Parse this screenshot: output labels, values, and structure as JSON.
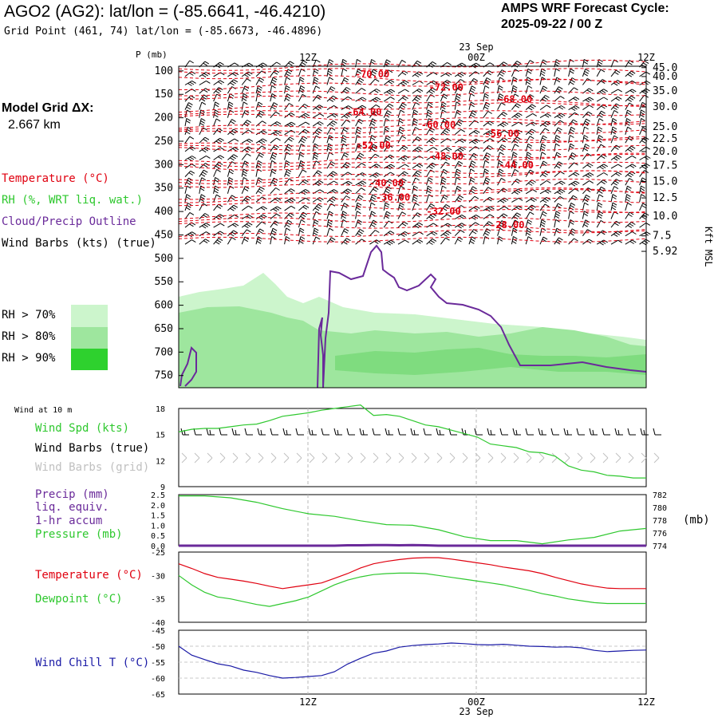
{
  "header": {
    "title": "AGO2 (AG2):  lat/lon = (-85.6641, -46.4210)",
    "subtitle": "Grid Point (461, 74) lat/lon = (-85.6673, -46.4896)",
    "cycle_line1": "AMPS WRF Forecast Cycle:",
    "cycle_line2": "2025-09-22 / 00  Z"
  },
  "model_grid": {
    "label": "Model Grid ΔX:",
    "value": "2.667 km"
  },
  "legend_main": [
    {
      "text": "Temperature (°C)",
      "color": "#e0000f"
    },
    {
      "text": "RH (%, WRT liq. wat.)",
      "color": "#2ec82e"
    },
    {
      "text": "Cloud/Precip Outline",
      "color": "#6a2a9a"
    },
    {
      "text": "Wind Barbs (kts) (true)",
      "color": "#000000"
    }
  ],
  "rh_legend": [
    {
      "text": "RH > 70%",
      "color": "#ccf5cc"
    },
    {
      "text": "RH > 80%",
      "color": "#9ee69e"
    },
    {
      "text": "RH > 90%",
      "color": "#2ed12e"
    }
  ],
  "panel_labels": {
    "wind10": "Wind at 10 m",
    "wspd": "Wind Spd (kts)",
    "wbarb_true": "Wind Barbs (true)",
    "wbarb_grid": "Wind Barbs (grid)",
    "precip1": "Precip (mm)",
    "precip2": "liq. equiv.",
    "precip3": "1-hr accum",
    "pressure": "Pressure (mb)",
    "mb_unit": "(mb)",
    "temp": "Temperature (°C)",
    "dew": "Dewpoint (°C)",
    "chill": "Wind Chill T (°C)"
  },
  "time_axis": {
    "top_labels": [
      "12Z",
      "00Z",
      "12Z"
    ],
    "date_label": "23 Sep",
    "bottom_labels": [
      "12Z",
      "00Z",
      "12Z"
    ]
  },
  "chart_data": [
    {
      "type": "heatmap",
      "title": "",
      "ylabel": "P (mb)",
      "y2label": "Kft MSL",
      "x_hours": [
        0,
        36
      ],
      "pressure_ticks": [
        100,
        150,
        200,
        250,
        300,
        350,
        400,
        450,
        500,
        550,
        600,
        650,
        700,
        750
      ],
      "height_ticks_kft": [
        "45.0",
        "40.0",
        "35.0",
        "30.0",
        "25.0",
        "22.5",
        "20.0",
        "17.5",
        "15.0",
        "12.5",
        "10.0",
        "7.5",
        "5.92"
      ],
      "height_tick_pressures": [
        93,
        112,
        143,
        177,
        219,
        245,
        272,
        302,
        336,
        371,
        410,
        452,
        485
      ],
      "temperature_contour_labels": [
        {
          "value": "-70.00",
          "hour": 14.9,
          "p": 107
        },
        {
          "value": "-72.00",
          "hour": 20.6,
          "p": 135
        },
        {
          "value": "-68.00",
          "hour": 25.9,
          "p": 161
        },
        {
          "value": "-64.00",
          "hour": 14.3,
          "p": 188
        },
        {
          "value": "-60.00",
          "hour": 20.0,
          "p": 215
        },
        {
          "value": "-56.00",
          "hour": 24.9,
          "p": 234
        },
        {
          "value": "-52.00",
          "hour": 15.0,
          "p": 259
        },
        {
          "value": "-48.00",
          "hour": 20.6,
          "p": 282
        },
        {
          "value": "-44.00",
          "hour": 26.0,
          "p": 301
        },
        {
          "value": "-40.00",
          "hour": 16.0,
          "p": 339
        },
        {
          "value": "-36.00",
          "hour": 16.5,
          "p": 370
        },
        {
          "value": "-32.00",
          "hour": 20.4,
          "p": 400
        },
        {
          "value": "-28.00",
          "hour": 25.3,
          "p": 429
        }
      ]
    },
    {
      "type": "line",
      "title": "",
      "ylim": [
        9,
        18
      ],
      "yticks": [
        9,
        12,
        15,
        18
      ],
      "series": [
        {
          "name": "Wind Spd (kts)",
          "color": "#2ec82e",
          "x": [
            0,
            1,
            2,
            3,
            4,
            5,
            6,
            7,
            8,
            9,
            10,
            11,
            12,
            13,
            14,
            15,
            16,
            17,
            18,
            19,
            20,
            21,
            22,
            23,
            24,
            25,
            26,
            27,
            28,
            29,
            30,
            31,
            32,
            33,
            34,
            35,
            36
          ],
          "values": [
            15.3,
            15.6,
            15.7,
            15.7,
            15.9,
            16.1,
            16.2,
            16.6,
            17.1,
            17.3,
            17.5,
            17.8,
            18.0,
            18.2,
            18.4,
            17.2,
            17.3,
            17.1,
            16.6,
            16.1,
            15.9,
            15.5,
            15.1,
            14.7,
            13.9,
            13.7,
            13.5,
            13.0,
            12.9,
            12.5,
            11.4,
            10.9,
            10.7,
            10.3,
            10.2,
            10.0,
            10.0
          ]
        }
      ]
    },
    {
      "type": "line",
      "title": "",
      "ylim": [
        0,
        2.5
      ],
      "yticks": [
        "0.0",
        "0.5",
        "1.0",
        "1.5",
        "2.0",
        "2.5"
      ],
      "y2lim": [
        774,
        782
      ],
      "y2ticks": [
        "774",
        "776",
        "778",
        "780",
        "782"
      ],
      "series": [
        {
          "name": "Pressure (mb)",
          "color": "#2ec82e",
          "x": [
            0,
            2,
            4,
            6,
            8,
            10,
            12,
            14,
            16,
            18,
            20,
            22,
            24,
            26,
            28,
            30,
            32,
            34,
            36
          ],
          "values": [
            781.8,
            781.8,
            781.5,
            780.8,
            779.8,
            779.0,
            778.6,
            777.9,
            777.3,
            777.2,
            776.5,
            775.4,
            774.8,
            774.8,
            774.3,
            774.9,
            775.3,
            776.3,
            776.7
          ]
        },
        {
          "name": "Precip (mm)",
          "color": "#6a2a9a",
          "x": [
            0,
            12,
            13,
            14,
            15,
            16,
            17,
            18,
            19,
            20,
            36
          ],
          "values": [
            0,
            0,
            0.02,
            0.02,
            0.03,
            0.03,
            0.02,
            0.03,
            0.02,
            0,
            0
          ]
        }
      ]
    },
    {
      "type": "line",
      "title": "",
      "ylim": [
        -40,
        -25
      ],
      "yticks": [
        "-25",
        "-30",
        "-35",
        "-40"
      ],
      "series": [
        {
          "name": "Temperature (°C)",
          "color": "#e0000f",
          "x": [
            0,
            1,
            2,
            3,
            4,
            5,
            6,
            7,
            8,
            9,
            10,
            11,
            12,
            13,
            14,
            15,
            16,
            17,
            18,
            19,
            20,
            21,
            22,
            23,
            24,
            25,
            26,
            27,
            28,
            29,
            30,
            31,
            32,
            33,
            34,
            35,
            36
          ],
          "values": [
            -27.5,
            -28.5,
            -29.6,
            -30.4,
            -30.8,
            -31.2,
            -31.7,
            -32.3,
            -32.8,
            -32.4,
            -32.0,
            -31.6,
            -30.6,
            -29.6,
            -28.4,
            -27.5,
            -27.0,
            -26.6,
            -26.3,
            -26.2,
            -26.2,
            -26.5,
            -26.9,
            -27.3,
            -27.7,
            -28.2,
            -28.6,
            -29.0,
            -29.6,
            -30.4,
            -31.1,
            -31.8,
            -32.3,
            -32.7,
            -32.8,
            -32.8,
            -32.8
          ]
        },
        {
          "name": "Dewpoint (°C)",
          "color": "#2ec82e",
          "x": [
            0,
            1,
            2,
            3,
            4,
            5,
            6,
            7,
            8,
            9,
            10,
            11,
            12,
            13,
            14,
            15,
            16,
            17,
            18,
            19,
            20,
            21,
            22,
            23,
            24,
            25,
            26,
            27,
            28,
            29,
            30,
            31,
            32,
            33,
            34,
            35,
            36
          ],
          "values": [
            -30.0,
            -32.0,
            -33.6,
            -34.6,
            -35.0,
            -35.6,
            -36.2,
            -36.6,
            -36.0,
            -35.4,
            -34.6,
            -33.3,
            -32.0,
            -31.0,
            -30.3,
            -29.8,
            -29.6,
            -29.5,
            -29.5,
            -29.6,
            -30.0,
            -30.4,
            -30.8,
            -31.2,
            -31.6,
            -32.0,
            -32.6,
            -33.2,
            -33.9,
            -34.4,
            -35.0,
            -35.4,
            -35.8,
            -36.0,
            -36.0,
            -36.0,
            -36.0
          ]
        }
      ]
    },
    {
      "type": "line",
      "title": "",
      "ylim": [
        -65,
        -45
      ],
      "yticks": [
        "-45",
        "-50",
        "-55",
        "-60",
        "-65"
      ],
      "series": [
        {
          "name": "Wind Chill T (°C)",
          "color": "#1a1aa6",
          "x": [
            0,
            1,
            2,
            3,
            4,
            5,
            6,
            7,
            8,
            9,
            10,
            11,
            12,
            13,
            14,
            15,
            16,
            17,
            18,
            19,
            20,
            21,
            22,
            23,
            24,
            25,
            26,
            27,
            28,
            29,
            30,
            31,
            32,
            33,
            34,
            35,
            36
          ],
          "values": [
            -50.0,
            -52.8,
            -54.2,
            -55.5,
            -56.2,
            -57.5,
            -58.2,
            -59.2,
            -60.0,
            -59.8,
            -59.5,
            -59.2,
            -58.0,
            -55.6,
            -53.8,
            -52.2,
            -51.5,
            -50.3,
            -49.8,
            -49.5,
            -49.3,
            -49.0,
            -49.2,
            -49.5,
            -49.6,
            -49.4,
            -49.7,
            -50.0,
            -50.1,
            -50.3,
            -50.2,
            -50.5,
            -51.3,
            -51.7,
            -51.5,
            -51.3,
            -51.2
          ]
        }
      ]
    }
  ]
}
